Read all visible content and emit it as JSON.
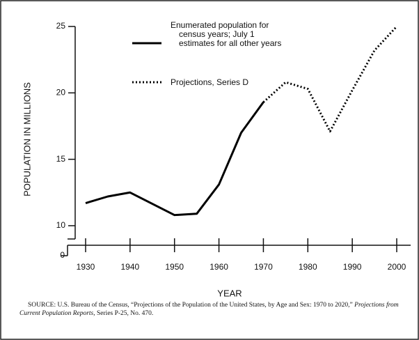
{
  "chart_data": {
    "type": "line",
    "y_label": "POPULATION IN MILLIONS",
    "x_label": "YEAR",
    "x": [
      1930,
      1935,
      1940,
      1950,
      1955,
      1960,
      1965,
      1970,
      1975,
      1980,
      1985,
      1990,
      1995,
      2000
    ],
    "series": [
      {
        "name": "Enumerated population for census years; July 1 estimates for all other years",
        "color": "#000000",
        "style": "solid",
        "values": [
          11.7,
          12.2,
          12.5,
          10.8,
          10.9,
          13.1,
          17.0,
          19.3,
          null,
          null,
          null,
          null,
          null,
          null
        ]
      },
      {
        "name": "Projections, Series D",
        "color": "#000000",
        "style": "dotted",
        "values": [
          null,
          null,
          null,
          null,
          null,
          null,
          null,
          19.3,
          20.8,
          20.3,
          17.1,
          20.2,
          23.2,
          25.0
        ]
      }
    ],
    "xlim": [
      1926,
      2004
    ],
    "xticks": [
      1930,
      1940,
      1950,
      1960,
      1970,
      1980,
      1990,
      2000
    ],
    "ylim": [
      0,
      25
    ],
    "y_break": [
      0,
      9
    ],
    "yticks": [
      0,
      10,
      15,
      20,
      25
    ],
    "source": {
      "prefix": "SOURCE:  U.S. Bureau of the Census, “Projections of the Population of the United States, by Age and Sex: 1970 to 2020,”",
      "italic": "Projections from Current Population Reports,",
      "suffix": "Series P-25, No. 470."
    }
  }
}
